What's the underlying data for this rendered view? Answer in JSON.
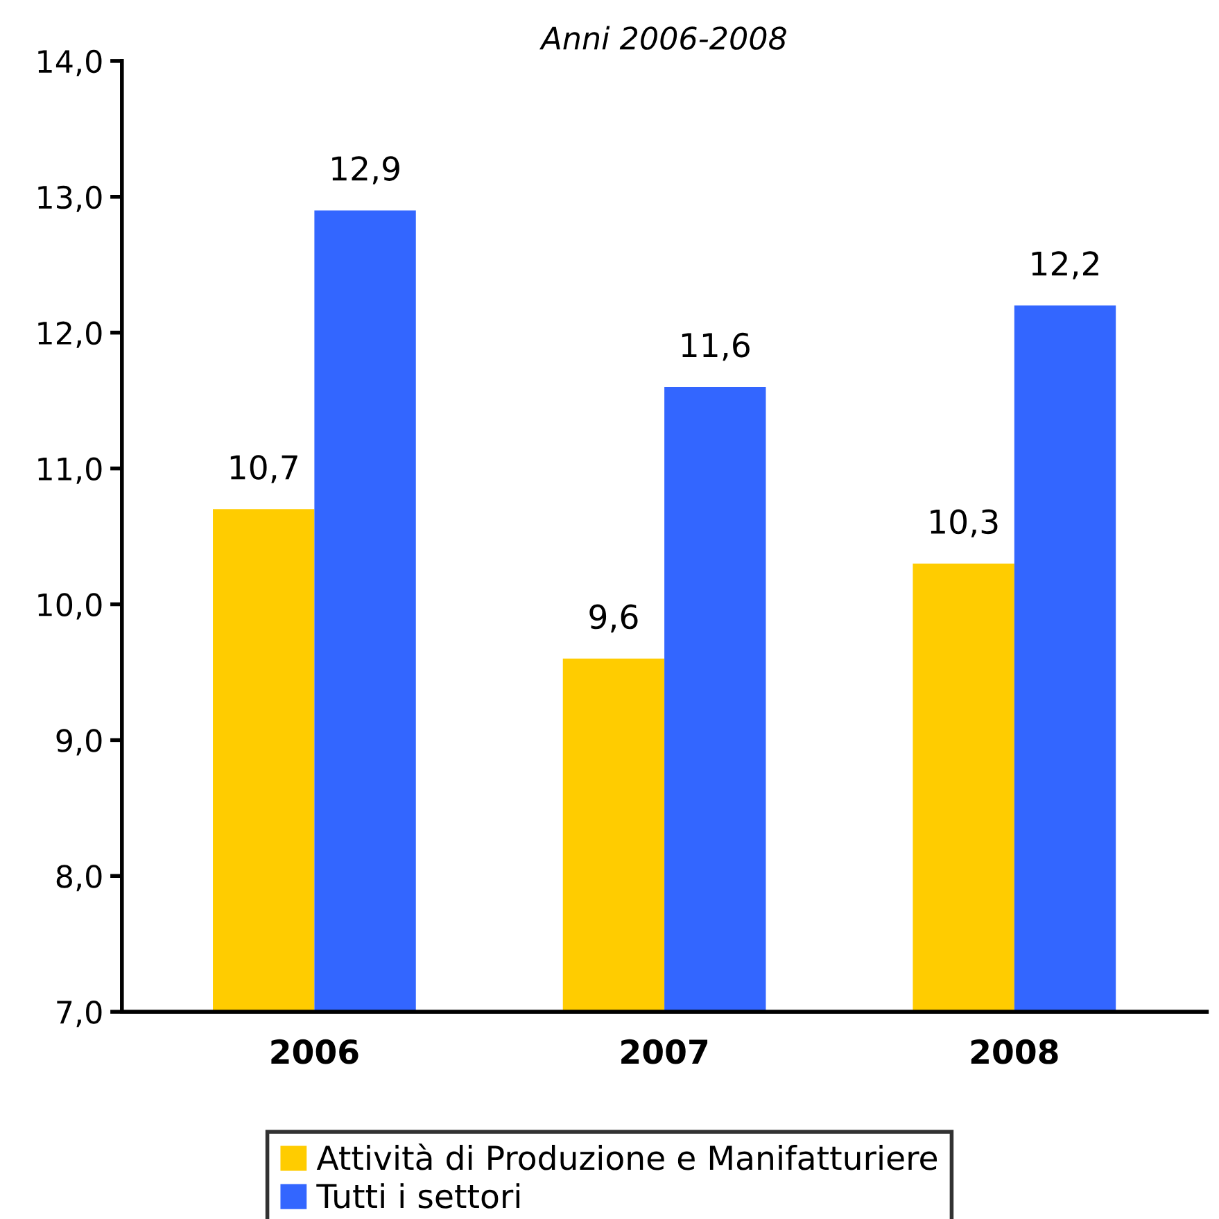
{
  "chart_data": {
    "type": "bar",
    "subtitle": "Anni 2006-2008",
    "categories": [
      "2006",
      "2007",
      "2008"
    ],
    "series": [
      {
        "name": "Attività di Produzione e Manifatturiere",
        "color": "#ffcc00",
        "values": [
          10.7,
          9.6,
          10.3
        ],
        "value_labels": [
          "10,7",
          "9,6",
          "10,3"
        ]
      },
      {
        "name": "Tutti i settori",
        "color": "#3366ff",
        "values": [
          12.9,
          11.6,
          12.2
        ],
        "value_labels": [
          "12,9",
          "11,6",
          "12,2"
        ]
      }
    ],
    "ylim": [
      7,
      14
    ],
    "yticks": [
      {
        "value": 7,
        "label": "7,0"
      },
      {
        "value": 8,
        "label": "8,0"
      },
      {
        "value": 9,
        "label": "9,0"
      },
      {
        "value": 10,
        "label": "10,0"
      },
      {
        "value": 11,
        "label": "11,0"
      },
      {
        "value": 12,
        "label": "12,0"
      },
      {
        "value": 13,
        "label": "13,0"
      },
      {
        "value": 14,
        "label": "14,0"
      }
    ],
    "grid": false,
    "legend": "bottom"
  }
}
